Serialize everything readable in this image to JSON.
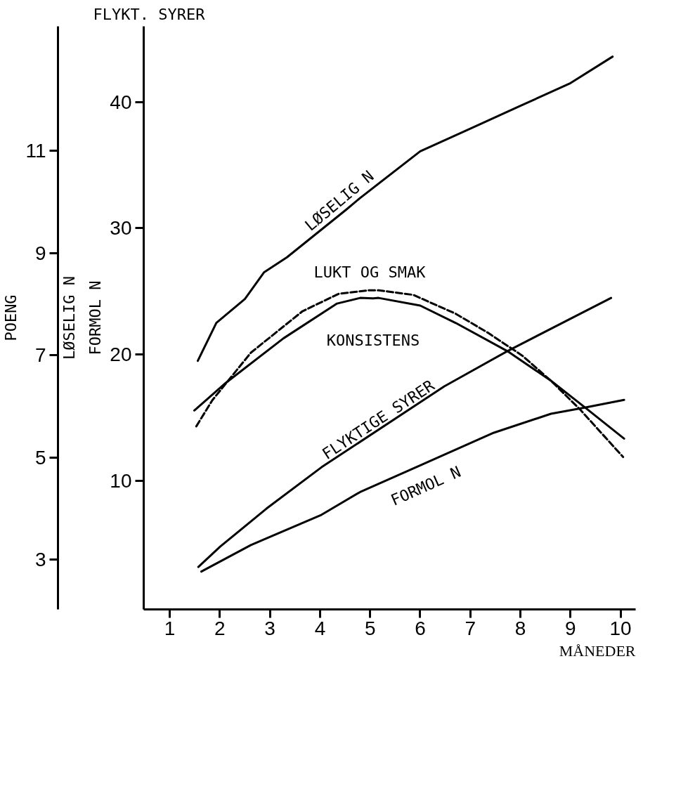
{
  "chart_data": {
    "type": "line",
    "ylabel": "POENG",
    "annotations": [
      "FLYKT. SYRER"
    ],
    "y2label": "LØSELIG N\nFORMOL N",
    "xlabel": "MÅNEDER",
    "xlim": [
      0.48,
      10.3
    ],
    "xticks": [
      1,
      2,
      3,
      4,
      5,
      6,
      7,
      8,
      9,
      10
    ],
    "ylim": [
      2.03,
      13.43
    ],
    "yticks": [
      3,
      5,
      7,
      9,
      11
    ],
    "y2lim": [
      -0.2,
      46.0
    ],
    "y2ticks": [
      10,
      20,
      30,
      40
    ],
    "series": [
      {
        "name": "LØSELIG N",
        "color": "#000000",
        "axis": "y2",
        "line_style": "solid",
        "x": [
          1.56,
          1.93,
          2.5,
          2.88,
          3.34,
          4.53,
          4.8,
          6.0,
          7.0,
          8.0,
          9.0,
          9.84
        ],
        "values": [
          19.5,
          22.5,
          24.4,
          26.5,
          27.7,
          31.5,
          32.4,
          36.1,
          37.9,
          39.7,
          41.5,
          43.6
        ]
      },
      {
        "name": "LUKT OG SMAK",
        "color": "#000000",
        "line_style": "dashed",
        "x": [
          1.53,
          1.85,
          2.62,
          3.65,
          4.37,
          4.99,
          5.17,
          5.86,
          6.71,
          7.35,
          8.04,
          8.61,
          9.19,
          10.05
        ],
        "values": [
          5.61,
          6.12,
          7.05,
          7.86,
          8.2,
          8.27,
          8.27,
          8.18,
          7.81,
          7.44,
          6.99,
          6.5,
          5.94,
          5.01
        ]
      },
      {
        "name": "KONSISTENS",
        "color": "#000000",
        "line_style": "solid",
        "x": [
          1.49,
          2.12,
          3.27,
          4.34,
          4.8,
          5.06,
          5.17,
          6.0,
          6.71,
          7.74,
          8.61,
          9.3,
          10.07
        ],
        "values": [
          5.92,
          6.46,
          7.33,
          8.01,
          8.12,
          8.11,
          8.12,
          7.97,
          7.63,
          7.08,
          6.5,
          5.97,
          5.37
        ]
      },
      {
        "name": "FLYKTIGE SYRER",
        "color": "#000000",
        "line_style": "solid",
        "x": [
          1.57,
          2.01,
          2.93,
          4.03,
          6.48,
          7.74,
          9.81
        ],
        "values": [
          2.86,
          3.26,
          4.0,
          4.81,
          6.39,
          7.08,
          8.12
        ]
      },
      {
        "name": "FORMOL N",
        "color": "#000000",
        "axis": "y2",
        "line_style": "solid",
        "x": [
          1.63,
          2.62,
          4.03,
          4.8,
          5.94,
          7.47,
          8.61,
          9.3,
          10.07
        ],
        "values": [
          2.8,
          4.9,
          7.3,
          9.1,
          11.1,
          13.8,
          15.3,
          15.8,
          16.4
        ]
      }
    ]
  }
}
